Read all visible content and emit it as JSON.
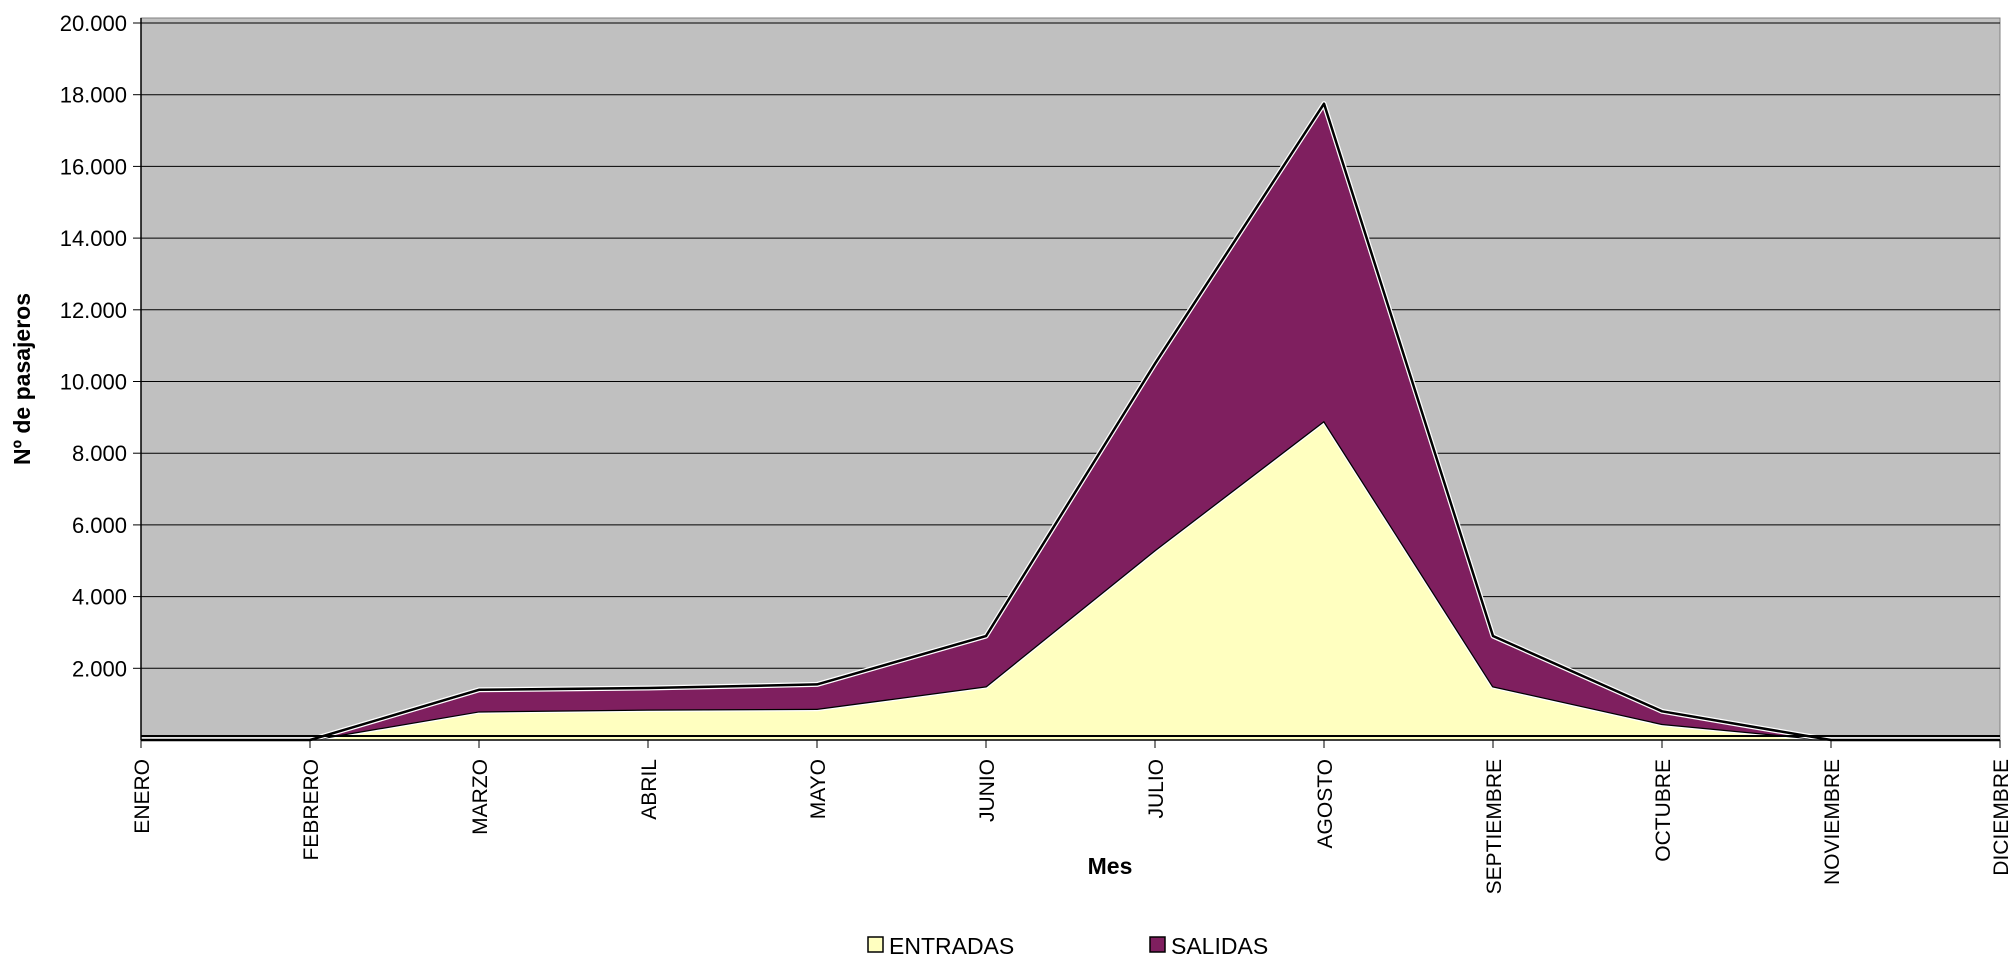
{
  "chart_data": {
    "type": "area",
    "stacked": true,
    "categories": [
      "ENERO",
      "FEBRERO",
      "MARZO",
      "ABRIL",
      "MAYO",
      "JUNIO",
      "JULIO",
      "AGOSTO",
      "SEPTIEMBRE",
      "OCTUBRE",
      "NOVIEMBRE",
      "DICIEMBRE"
    ],
    "series": [
      {
        "name": "ENTRADAS",
        "color": "#ffffc0",
        "values": [
          0,
          0,
          800,
          850,
          870,
          1500,
          5300,
          8900,
          1500,
          450,
          0,
          0
        ]
      },
      {
        "name": "SALIDAS",
        "color": "#7f1f5f",
        "values": [
          0,
          0,
          600,
          600,
          680,
          1400,
          5200,
          8850,
          1400,
          350,
          0,
          0
        ]
      }
    ],
    "xlabel": "Mes",
    "ylabel": "Nº de pasajeros",
    "ylim": [
      0,
      20000
    ],
    "yticks": [
      2000,
      4000,
      6000,
      8000,
      10000,
      12000,
      14000,
      16000,
      18000,
      20000
    ],
    "ytick_labels": [
      "2.000",
      "4.000",
      "6.000",
      "8.000",
      "10.000",
      "12.000",
      "14.000",
      "16.000",
      "18.000",
      "20.000"
    ],
    "grid": true,
    "plot_background": "#c0c0c0",
    "legend_position": "bottom"
  }
}
